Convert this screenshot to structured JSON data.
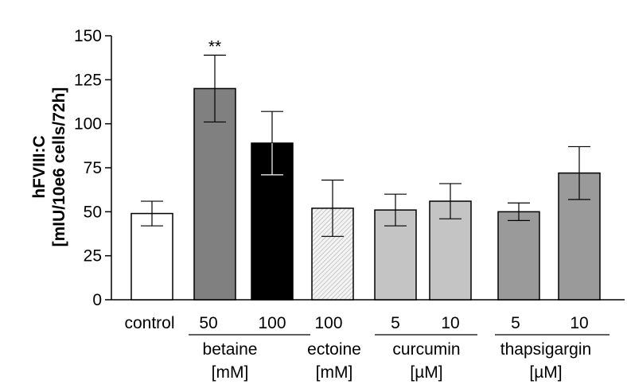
{
  "chart_data": {
    "type": "bar",
    "ylabel": "hFVIII:C",
    "ylabel_line2": "[mIU/10e6 cells/72h]",
    "ylim": [
      0,
      150
    ],
    "yticks": [
      "0",
      "25",
      "50",
      "75",
      "100",
      "125",
      "150"
    ],
    "grid": false,
    "categories": [
      "control",
      "50",
      "100",
      "100",
      "5",
      "10",
      "5",
      "10"
    ],
    "values": [
      49,
      120,
      89,
      52,
      51,
      56,
      50,
      72
    ],
    "error": [
      7,
      19,
      18,
      16,
      9,
      10,
      5,
      15
    ],
    "bar_colors": [
      "#ffffff",
      "#808080",
      "#000000",
      "#f0f0f0",
      "#c4c4c4",
      "#c4c4c4",
      "#9a9a9a",
      "#9a9a9a"
    ],
    "hatched": [
      false,
      false,
      false,
      true,
      false,
      false,
      false,
      false
    ],
    "annotations": [
      {
        "bar": 1,
        "text": "**"
      }
    ],
    "groups": [
      {
        "name": "betaine",
        "unit": "[mM]",
        "bars": [
          1,
          2
        ]
      },
      {
        "name": "ectoine",
        "unit": "[mM]",
        "bars": [
          3
        ]
      },
      {
        "name": "curcumin",
        "unit": "[µM]",
        "bars": [
          4,
          5
        ]
      },
      {
        "name": "thapsigargin",
        "unit": "[µM]",
        "bars": [
          6,
          7
        ]
      }
    ]
  }
}
